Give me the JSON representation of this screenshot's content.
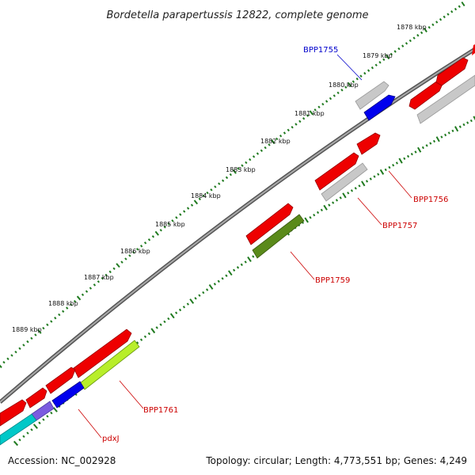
{
  "title": "Bordetella parapertussis 12822, complete genome",
  "footer": {
    "accession": "Accession: NC_002928",
    "summary": "Topology: circular; Length: 4,773,551 bp; Genes: 4,249"
  },
  "ticks": [
    "1878 kbp",
    "1879 kbp",
    "1880 kbp",
    "1881 kbp",
    "1882 kbp",
    "1883 kbp",
    "1884 kbp",
    "1885 kbp",
    "1886 kbp",
    "1887 kbp",
    "1888 kbp",
    "1889 kbp"
  ],
  "gene_labels": [
    {
      "name": "BPP1755",
      "color": "#0000cc"
    },
    {
      "name": "BPP1756",
      "color": "#cc0000"
    },
    {
      "name": "BPP1757",
      "color": "#cc0000"
    },
    {
      "name": "BPP1759",
      "color": "#cc0000"
    },
    {
      "name": "BPP1761",
      "color": "#cc0000"
    },
    {
      "name": "pdxJ",
      "color": "#cc0000"
    }
  ],
  "colors": {
    "backbone": "#7a7a7a",
    "tick_major": "#1f7a1f",
    "tick_minor": "#1f7a1f",
    "cds_forward": "#ee0000",
    "pseudo": "#c8c8c8",
    "blue": "#0000ee",
    "olive": "#5a8a1a",
    "lime": "#b8ee2a",
    "cyan": "#00c8c8",
    "purple": "#7b5be0"
  }
}
